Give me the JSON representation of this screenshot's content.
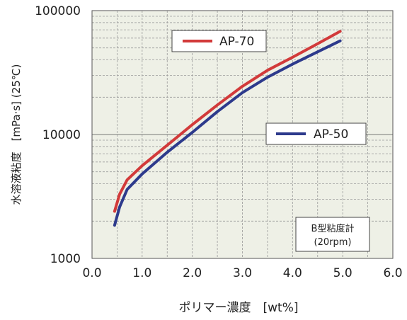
{
  "chart_data": {
    "type": "line",
    "xlabel": "ポリマー濃度　[wt%]",
    "ylabel": "水溶液粘度　[mPa·s] (25℃)",
    "xlim": [
      0.0,
      6.0
    ],
    "ylim": [
      1000,
      100000
    ],
    "yscale": "log",
    "x_ticks": [
      "0.0",
      "1.0",
      "2.0",
      "3.0",
      "4.0",
      "5.0",
      "6.0"
    ],
    "y_ticks": [
      "1000",
      "10000",
      "100000"
    ],
    "grid": true,
    "series": [
      {
        "name": "AP-70",
        "color": "#d23a3a",
        "points": [
          [
            0.45,
            2400
          ],
          [
            0.55,
            3300
          ],
          [
            0.7,
            4300
          ],
          [
            1.0,
            5600
          ],
          [
            1.5,
            8200
          ],
          [
            2.0,
            12000
          ],
          [
            2.5,
            17300
          ],
          [
            3.0,
            24500
          ],
          [
            3.5,
            33000
          ],
          [
            4.0,
            42000
          ],
          [
            4.5,
            54000
          ],
          [
            4.95,
            68000
          ]
        ]
      },
      {
        "name": "AP-50",
        "color": "#2d3a8c",
        "points": [
          [
            0.45,
            1850
          ],
          [
            0.55,
            2600
          ],
          [
            0.7,
            3600
          ],
          [
            1.0,
            4800
          ],
          [
            1.5,
            7200
          ],
          [
            2.0,
            10400
          ],
          [
            2.5,
            15300
          ],
          [
            3.0,
            21800
          ],
          [
            3.5,
            29000
          ],
          [
            4.0,
            37000
          ],
          [
            4.5,
            46500
          ],
          [
            4.95,
            57000
          ]
        ]
      }
    ],
    "annotation": {
      "line1": "B型粘度計",
      "line2": "(20rpm)"
    }
  }
}
